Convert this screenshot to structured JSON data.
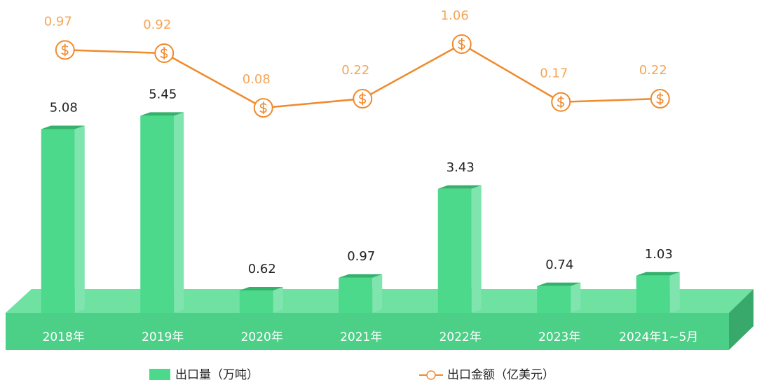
{
  "chart_data": {
    "type": "bar",
    "categories": [
      "2018年",
      "2019年",
      "2020年",
      "2021年",
      "2022年",
      "2023年",
      "2024年1~5月"
    ],
    "series": [
      {
        "name": "出口量（万吨）",
        "type": "bar",
        "color": "#4cd98b",
        "values": [
          5.08,
          5.45,
          0.62,
          0.97,
          3.43,
          0.74,
          1.03
        ]
      },
      {
        "name": "出口金额（亿美元）",
        "type": "line",
        "axis": "y2",
        "color": "#f08a2c",
        "values": [
          0.97,
          0.92,
          0.08,
          0.22,
          1.06,
          0.17,
          0.22
        ]
      }
    ],
    "ylim": [
      0,
      6
    ],
    "y2lim": [
      0,
      1.2
    ],
    "legend": "bottom"
  }
}
